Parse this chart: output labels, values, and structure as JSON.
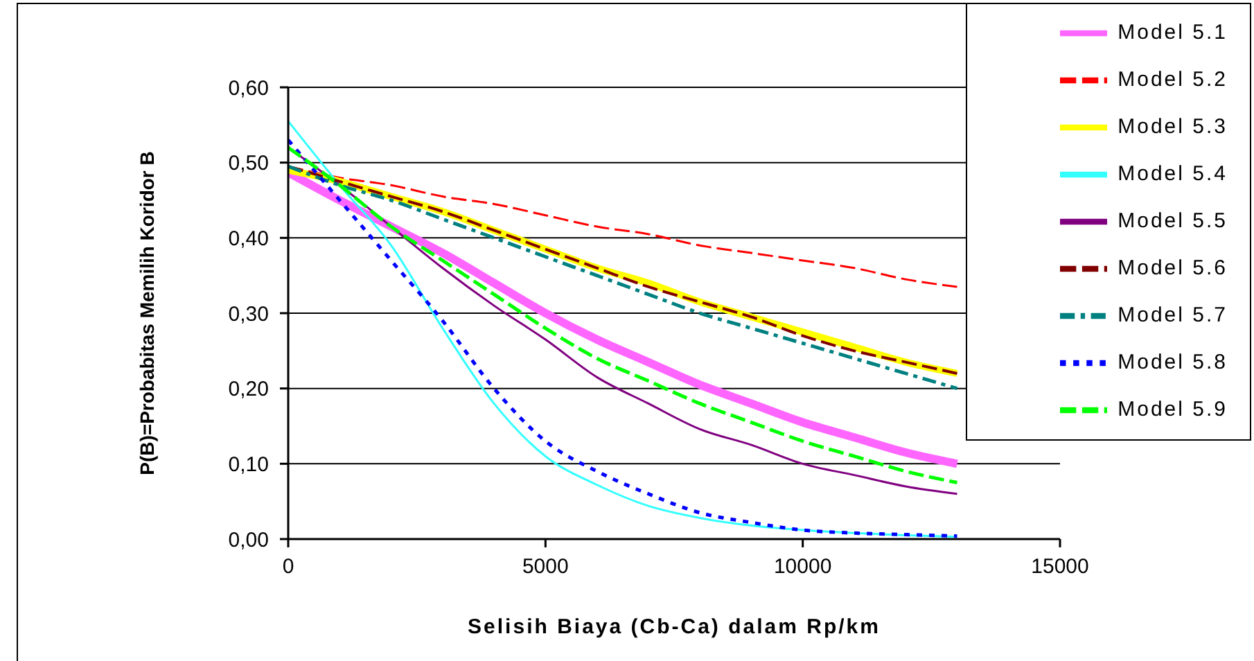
{
  "chart_data": {
    "type": "line",
    "xlabel": "Selisih Biaya (Cb-Ca) dalam Rp/km",
    "ylabel": "P(B)=Probabitas Memilih Koridor B",
    "x": [
      0,
      1000,
      2000,
      3000,
      4000,
      5000,
      6000,
      7000,
      8000,
      9000,
      10000,
      11000,
      12000,
      13000
    ],
    "xlim": [
      0,
      15000
    ],
    "xticks": [
      0,
      5000,
      10000,
      15000
    ],
    "ylim": [
      0,
      0.6
    ],
    "yticks": [
      {
        "value": 0,
        "label": "0,00"
      },
      {
        "value": 0.1,
        "label": "0,10"
      },
      {
        "value": 0.2,
        "label": "0,20"
      },
      {
        "value": 0.3,
        "label": "0,30"
      },
      {
        "value": 0.4,
        "label": "0,40"
      },
      {
        "value": 0.5,
        "label": "0,50"
      },
      {
        "value": 0.6,
        "label": "0,60"
      }
    ],
    "grid": "y",
    "legend": "top right",
    "marker": "none",
    "series": [
      {
        "name": "Model 5.1",
        "color": "#ff66ff",
        "line_style": "solid",
        "values": [
          0.487,
          0.45,
          0.415,
          0.38,
          0.34,
          0.3,
          0.265,
          0.235,
          0.205,
          0.18,
          0.155,
          0.135,
          0.115,
          0.1
        ]
      },
      {
        "name": "Model 5.2",
        "color": "#ff0000",
        "line_style": "dashed",
        "values": [
          0.495,
          0.48,
          0.47,
          0.455,
          0.445,
          0.43,
          0.415,
          0.405,
          0.39,
          0.38,
          0.37,
          0.36,
          0.345,
          0.335
        ]
      },
      {
        "name": "Model 5.3",
        "color": "#ffff00",
        "line_style": "solid",
        "values": [
          0.49,
          0.475,
          0.455,
          0.435,
          0.41,
          0.385,
          0.36,
          0.34,
          0.315,
          0.295,
          0.275,
          0.255,
          0.235,
          0.22
        ]
      },
      {
        "name": "Model 5.4",
        "color": "#33ffff",
        "line_style": "solid",
        "values": [
          0.555,
          0.47,
          0.39,
          0.28,
          0.18,
          0.11,
          0.072,
          0.044,
          0.028,
          0.018,
          0.012,
          0.008,
          0.005,
          0.003
        ]
      },
      {
        "name": "Model 5.5",
        "color": "#800080",
        "line_style": "solid",
        "values": [
          0.52,
          0.47,
          0.415,
          0.36,
          0.31,
          0.265,
          0.215,
          0.18,
          0.146,
          0.125,
          0.1,
          0.085,
          0.07,
          0.06
        ]
      },
      {
        "name": "Model 5.6",
        "color": "#800000",
        "line_style": "dashed",
        "values": [
          0.495,
          0.475,
          0.455,
          0.435,
          0.41,
          0.385,
          0.36,
          0.335,
          0.315,
          0.295,
          0.27,
          0.25,
          0.235,
          0.22
        ]
      },
      {
        "name": "Model 5.7",
        "color": "#008080",
        "line_style": "dashdot",
        "values": [
          0.495,
          0.47,
          0.45,
          0.425,
          0.4,
          0.375,
          0.35,
          0.325,
          0.3,
          0.28,
          0.26,
          0.24,
          0.22,
          0.2
        ]
      },
      {
        "name": "Model 5.8",
        "color": "#0000ff",
        "line_style": "dotted",
        "values": [
          0.53,
          0.45,
          0.37,
          0.29,
          0.2,
          0.13,
          0.09,
          0.06,
          0.035,
          0.022,
          0.012,
          0.008,
          0.006,
          0.004
        ]
      },
      {
        "name": "Model 5.9",
        "color": "#00ff00",
        "line_style": "dashed",
        "values": [
          0.52,
          0.47,
          0.415,
          0.37,
          0.325,
          0.28,
          0.24,
          0.21,
          0.18,
          0.155,
          0.13,
          0.11,
          0.09,
          0.075
        ]
      }
    ]
  }
}
